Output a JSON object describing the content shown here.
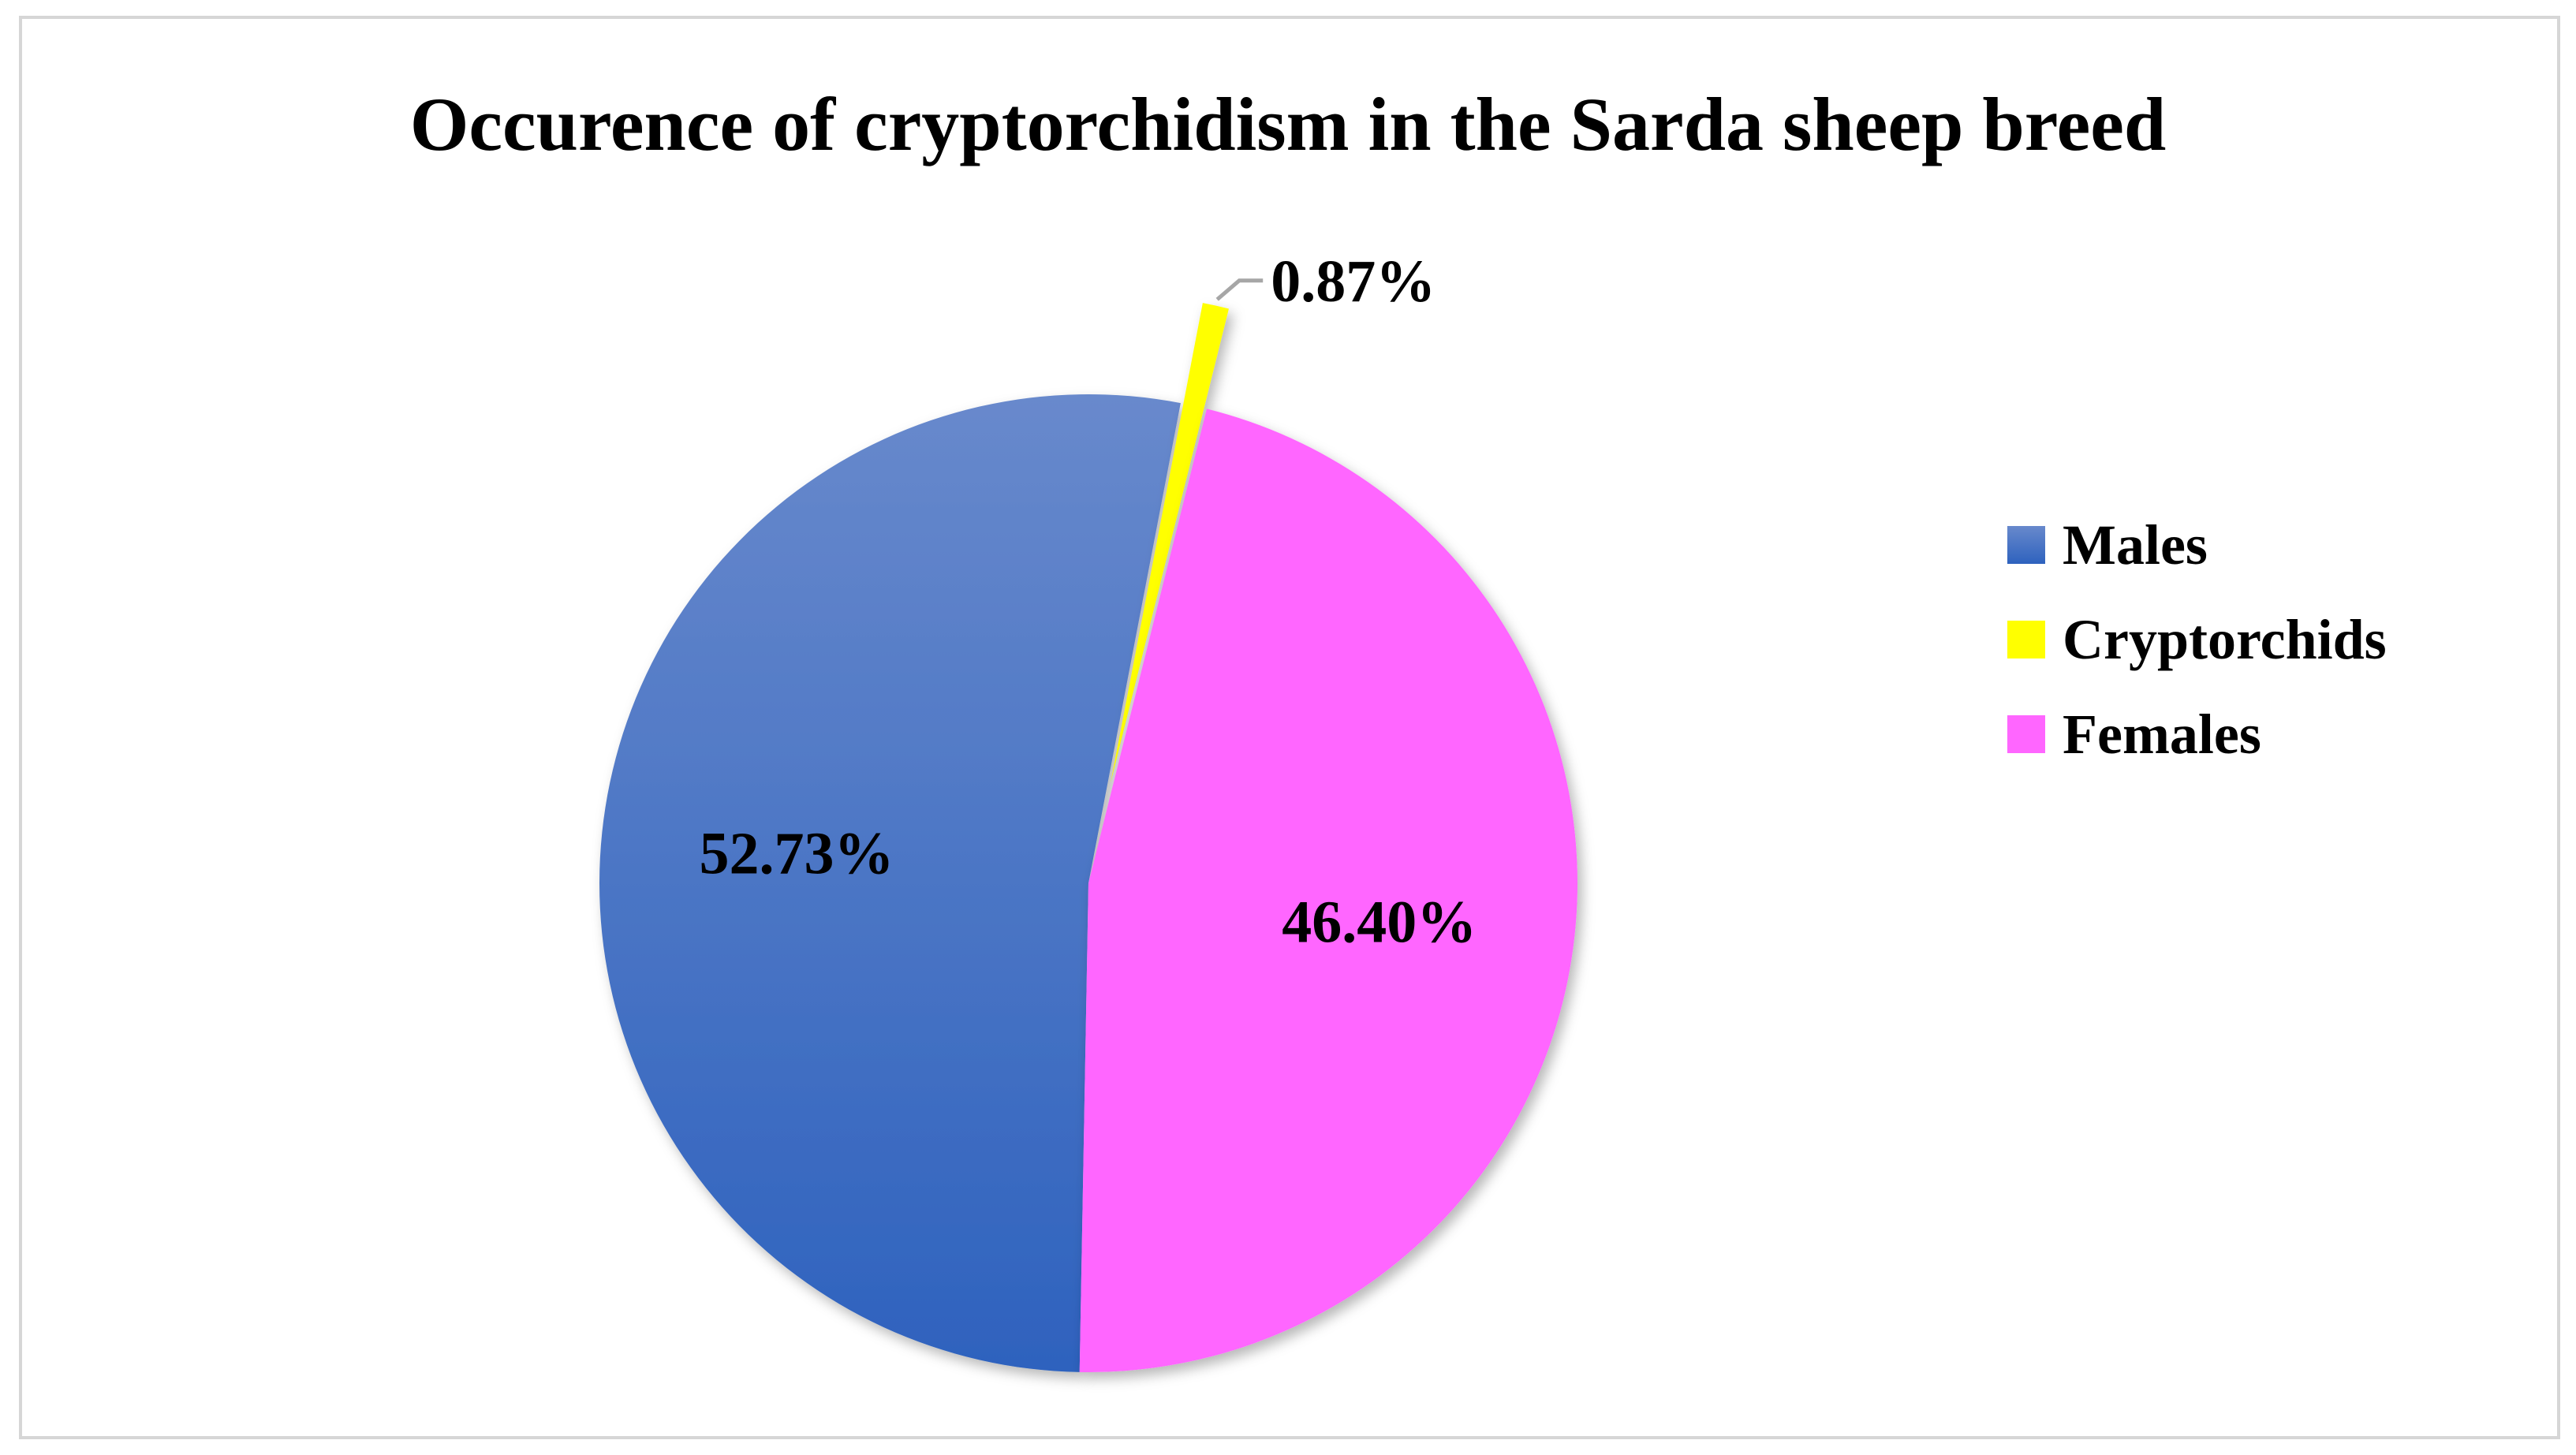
{
  "chart_data": {
    "type": "pie",
    "title": "Occurence of cryptorchidism in the Sarda sheep breed",
    "categories": [
      "Males",
      "Cryptorchids",
      "Females"
    ],
    "values": [
      52.73,
      0.87,
      46.4
    ],
    "data_labels": [
      "52.73%",
      "0.87%",
      "46.40%"
    ],
    "colors": [
      "#3a6cc4",
      "#ffff00",
      "#ff66ff"
    ],
    "exploded": [
      "Cryptorchids"
    ],
    "legend_position": "right"
  }
}
